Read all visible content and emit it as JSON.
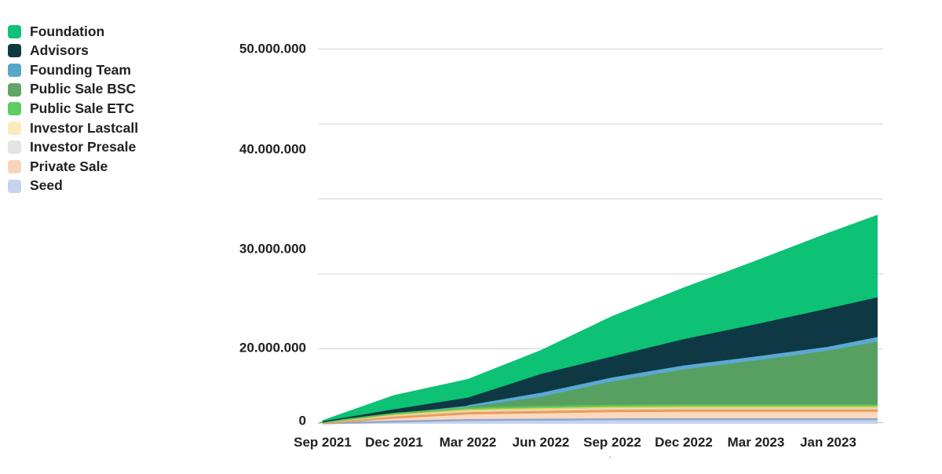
{
  "page": {
    "background": "#ffffff",
    "text_color": "#202124"
  },
  "legend": {
    "position": "top-left",
    "items": [
      {
        "label": "Foundation",
        "color": "#0ec17c"
      },
      {
        "label": "Advisors",
        "color": "#10383f"
      },
      {
        "label": "Founding Team",
        "color": "#57a7c9"
      },
      {
        "label": "Public Sale BSC",
        "color": "#61a566"
      },
      {
        "label": "Public Sale ETC",
        "color": "#5ecd62"
      },
      {
        "label": "Investor Lastcall",
        "color": "#fce9bd"
      },
      {
        "label": "Investor Presale",
        "color": "#e4e4e4"
      },
      {
        "label": "Private Sale",
        "color": "#f9d4bd"
      },
      {
        "label": "Seed",
        "color": "#c5d4ef"
      }
    ]
  },
  "y_axis": {
    "labels": [
      "50.000.000",
      "40.000.000",
      "30.000.000",
      "20.000.000",
      "0"
    ]
  },
  "x_axis": {
    "labels": [
      "Sep 2021",
      "Dec 2021",
      "Mar 2022",
      "Jun 2022",
      "Sep 2022",
      "Dec 2022",
      "Mar 2023",
      "Jan 2023"
    ]
  },
  "chart_data": {
    "type": "area",
    "stacked": true,
    "title": "",
    "xlabel": "",
    "ylabel": "",
    "ylim": [
      0,
      50000000
    ],
    "grid": "horizontal",
    "grid_color": "#d9d9d9",
    "axis_line_color": "#c9c9c9",
    "number_format": "dot thousands separator",
    "legend_position": "top-left",
    "x_tick_labels": [
      "Sep 2021",
      "Dec 2021",
      "Mar 2022",
      "Jun 2022",
      "Sep 2022",
      "Dec 2022",
      "Mar 2023",
      "Jan 2023"
    ],
    "y_tick_labels": [
      "0",
      "20.000.000",
      "30.000.000",
      "40.000.000",
      "50.000.000"
    ],
    "x_stations": [
      "plot-left-edge",
      "Sep 2021",
      "Dec 2021",
      "Mar 2022",
      "Jun 2022",
      "Sep 2022",
      "Dec 2022",
      "Mar 2023",
      "Jan 2023",
      "plot-right-edge"
    ],
    "stack_order_note": "series listed top-of-stack first; values are estimated vested tokens per station",
    "series": [
      {
        "name": "Foundation",
        "fill": "#0dc175",
        "stroke": "#0dc175",
        "stroke_width": 1.5,
        "values": [
          0,
          150000,
          1900000,
          2500000,
          3200000,
          5400000,
          6900000,
          8500000,
          10100000,
          11000000
        ]
      },
      {
        "name": "Advisors",
        "fill": "#0e3843",
        "stroke": "#0e3843",
        "stroke_width": 1.5,
        "values": [
          0,
          50000,
          500000,
          1000000,
          2500000,
          2800000,
          3500000,
          4300000,
          5100000,
          5300000
        ]
      },
      {
        "name": "Founding Team",
        "fill": "#5ba9d4",
        "stroke": "#5ba9d4",
        "stroke_width": 1.5,
        "values": [
          0,
          0,
          0,
          200000,
          500000,
          500000,
          500000,
          500000,
          500000,
          600000
        ]
      },
      {
        "name": "Public Sale BSC",
        "fill": "#58a061",
        "stroke": "#58a061",
        "stroke_width": 1,
        "values": [
          0,
          0,
          0,
          100000,
          1250000,
          3150000,
          4700000,
          5900000,
          7200000,
          8400000
        ]
      },
      {
        "name": "Public Sale ETC",
        "fill": "#8fce63",
        "stroke": "#55c556",
        "stroke_width": 2,
        "values": [
          0,
          20000,
          200000,
          300000,
          300000,
          300000,
          300000,
          300000,
          300000,
          300000
        ]
      },
      {
        "name": "Investor Lastcall",
        "fill": "#fce8b4",
        "stroke": "#f3ce56",
        "stroke_width": 1.5,
        "values": [
          0,
          30000,
          150000,
          200000,
          200000,
          200000,
          200000,
          200000,
          200000,
          200000
        ]
      },
      {
        "name": "Investor Presale",
        "fill": "#dedede",
        "stroke": "#cfcfcf",
        "stroke_width": 1,
        "values": [
          0,
          30000,
          150000,
          200000,
          250000,
          250000,
          250000,
          250000,
          250000,
          250000
        ]
      },
      {
        "name": "Private Sale",
        "fill": "#fbd9c0",
        "stroke": "#ee9c55",
        "stroke_width": 3,
        "values": [
          0,
          70000,
          550000,
          900000,
          1000000,
          1100000,
          1150000,
          1150000,
          1150000,
          1150000
        ]
      },
      {
        "name": "Seed",
        "fill": "#c5d3ed",
        "stroke": "#8fa8ce",
        "stroke_width": 2.5,
        "values": [
          0,
          50000,
          300000,
          500000,
          550000,
          600000,
          600000,
          600000,
          600000,
          600000
        ]
      }
    ]
  }
}
